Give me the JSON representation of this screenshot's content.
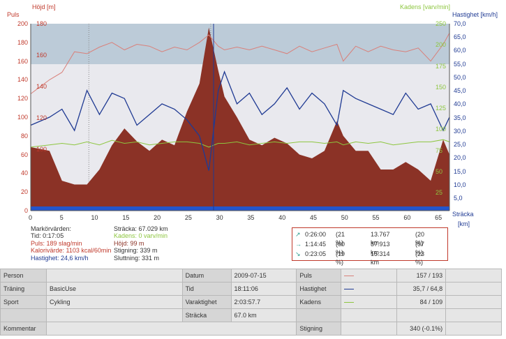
{
  "axes": {
    "puls_label": "Puls",
    "hojd_label": "Höjd [m]",
    "kadens_label": "Kadens [varv/min]",
    "hastighet_label": "Hastighet [km/h]",
    "stracka_label": "Sträcka",
    "km_label": "[km]",
    "puls_ticks": [
      "200",
      "180",
      "160",
      "140",
      "120",
      "100",
      "80",
      "60",
      "40",
      "20",
      "0"
    ],
    "hojd_ticks": [
      "180",
      "160",
      "140",
      "120",
      "100"
    ],
    "kadens_ticks": [
      "250",
      "200",
      "175",
      "150",
      "125",
      "100",
      "75",
      "50",
      "25"
    ],
    "hastighet_ticks": [
      "70,0",
      "65,0",
      "60,0",
      "55,0",
      "50,0",
      "45,0",
      "40,0",
      "35,0",
      "30,0",
      "25,0",
      "20,0",
      "15,0",
      "10,0",
      "5,0"
    ],
    "x_ticks": [
      "0",
      "5",
      "10",
      "15",
      "20",
      "25",
      "30",
      "35",
      "40",
      "45",
      "50",
      "55",
      "60",
      "65"
    ]
  },
  "colors": {
    "altitude_fill": "#8b3226",
    "pulse_line": "#d9807a",
    "speed_line": "#1f3a93",
    "cadence_line": "#8dc63f",
    "band_top": "#bccbd8",
    "plot_bg": "#e9e9ee"
  },
  "marker": {
    "title": "Markörvärden:",
    "tid": "Tid: 0:17:05",
    "puls": "Puls: 189 slag/min",
    "kalori": "Kalorivärde: 1103 kcal/60min",
    "hastighet": "Hastighet: 24,6 km/h",
    "stracka": "Sträcka: 67.029 km",
    "kadens": "Kadens: 0 varv/min",
    "hojd": "Höjd: 99 m",
    "stigning": "Stigning: 339 m",
    "sluttning": "Sluttning: 331 m"
  },
  "zones": [
    {
      "icon": "↗",
      "time": "0:26:00",
      "pct": "(21 %)",
      "dist": "13.767 km",
      "dpct": "(20 %)"
    },
    {
      "icon": "→",
      "time": "1:14:45",
      "pct": "(60 %)",
      "dist": "37.913 km",
      "dpct": "(57 %)"
    },
    {
      "icon": "↘",
      "time": "0:23:05",
      "pct": "(19 %)",
      "dist": "15.314 km",
      "dpct": "(23 %)"
    }
  ],
  "chart_data": {
    "type": "area",
    "xlabel": "Sträcka",
    "x_unit": "[km]",
    "xlim": [
      0,
      67
    ],
    "series": [
      {
        "name": "Höjd [m]",
        "axis": "left",
        "ylim": [
          90,
          190
        ],
        "x": [
          0,
          3,
          5,
          7,
          9,
          11,
          13,
          15,
          17,
          19,
          21,
          23,
          25,
          27,
          28.5,
          30,
          31,
          33,
          35,
          37,
          39,
          41,
          43,
          45,
          47,
          49,
          50,
          52,
          54,
          56,
          58,
          60,
          62,
          64,
          66,
          67
        ],
        "values": [
          124,
          122,
          106,
          104,
          104,
          112,
          125,
          134,
          127,
          122,
          128,
          125,
          143,
          158,
          188,
          165,
          151,
          140,
          128,
          125,
          129,
          126,
          120,
          118,
          122,
          138,
          130,
          122,
          122,
          112,
          112,
          116,
          112,
          106,
          128,
          120
        ]
      },
      {
        "name": "Puls",
        "axis": "left",
        "ylim": [
          0,
          200
        ],
        "x": [
          0,
          3,
          5,
          7,
          9,
          11,
          13,
          15,
          17,
          19,
          21,
          23,
          25,
          27,
          28.5,
          30,
          31,
          33,
          35,
          37,
          39,
          41,
          43,
          45,
          47,
          49,
          50,
          52,
          54,
          56,
          58,
          60,
          62,
          64,
          66,
          67
        ],
        "values": [
          125,
          140,
          148,
          170,
          168,
          175,
          180,
          172,
          178,
          176,
          170,
          175,
          172,
          180,
          188,
          176,
          172,
          175,
          172,
          176,
          172,
          168,
          176,
          170,
          174,
          178,
          160,
          176,
          170,
          176,
          172,
          170,
          174,
          160,
          178,
          190
        ]
      },
      {
        "name": "Hastighet [km/h]",
        "axis": "right",
        "ylim": [
          0,
          70
        ],
        "x": [
          0,
          3,
          5,
          7,
          9,
          11,
          13,
          15,
          17,
          19,
          21,
          23,
          25,
          27,
          28.5,
          30,
          31,
          33,
          35,
          37,
          39,
          41,
          43,
          45,
          47,
          49,
          50,
          52,
          54,
          56,
          58,
          60,
          62,
          64,
          66,
          67
        ],
        "values": [
          32,
          35,
          38,
          30,
          45,
          36,
          44,
          42,
          32,
          36,
          40,
          38,
          34,
          28,
          15,
          45,
          52,
          40,
          44,
          36,
          40,
          46,
          38,
          44,
          40,
          32,
          45,
          42,
          40,
          38,
          36,
          44,
          38,
          40,
          30,
          35
        ]
      },
      {
        "name": "Kadens [varv/min]",
        "axis": "right",
        "ylim": [
          0,
          250
        ],
        "x": [
          0,
          3,
          5,
          7,
          9,
          11,
          13,
          15,
          17,
          19,
          21,
          23,
          25,
          27,
          28.5,
          30,
          31,
          33,
          35,
          37,
          39,
          41,
          43,
          45,
          47,
          49,
          50,
          52,
          54,
          56,
          58,
          60,
          62,
          64,
          66,
          67
        ],
        "values": [
          85,
          88,
          90,
          88,
          92,
          88,
          94,
          90,
          92,
          88,
          90,
          92,
          92,
          90,
          85,
          90,
          90,
          92,
          88,
          90,
          92,
          90,
          92,
          92,
          90,
          92,
          88,
          92,
          90,
          92,
          88,
          90,
          92,
          92,
          95,
          92
        ]
      }
    ]
  },
  "table": {
    "rows": [
      {
        "c1": "Person",
        "c2": "",
        "c3": "Datum",
        "c4": "2009-07-15",
        "c5": "Puls",
        "c6": "157 / 193"
      },
      {
        "c1": "Träning",
        "c2": "BasicUse",
        "c3": "Tid",
        "c4": "18:11:06",
        "c5": "Hastighet",
        "c6": "35,7 / 64,8"
      },
      {
        "c1": "Sport",
        "c2": "Cykling",
        "c3": "Varaktighet",
        "c4": "2:03:57.7",
        "c5": "Kadens",
        "c6": "84 / 109"
      },
      {
        "c1": "",
        "c2": "",
        "c3": "Sträcka",
        "c4": "67.0 km",
        "c5": "",
        "c6": ""
      },
      {
        "c1": "Kommentar",
        "c2": "",
        "c3": "",
        "c4": "",
        "c5": "Stigning",
        "c6": "340 (-0.1%)"
      }
    ]
  }
}
